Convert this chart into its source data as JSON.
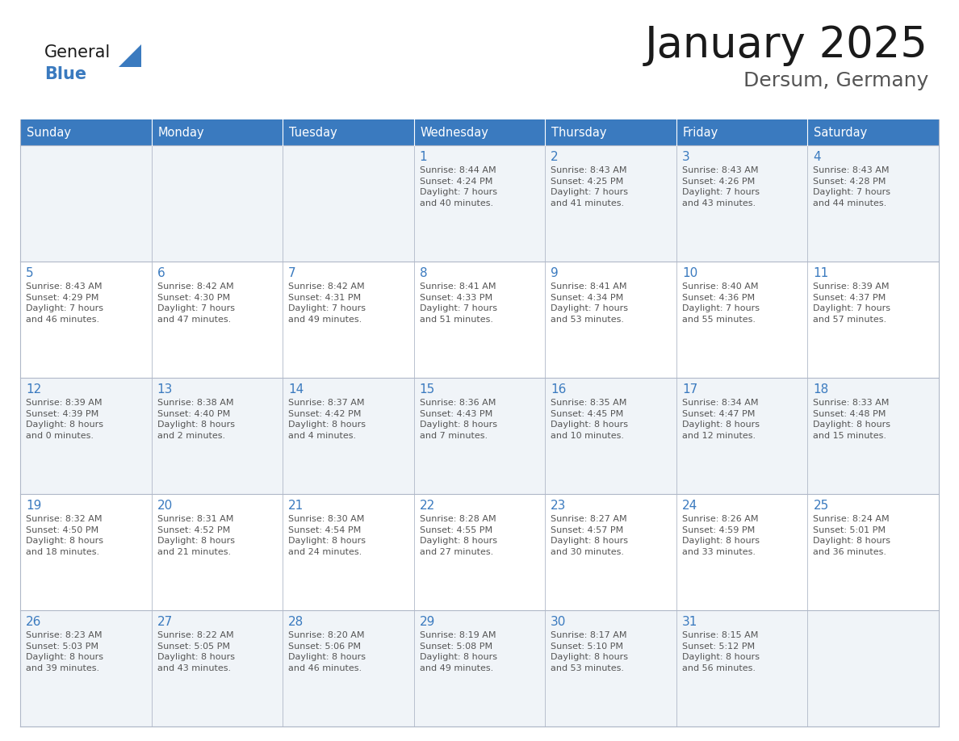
{
  "title": "January 2025",
  "subtitle": "Dersum, Germany",
  "header_bg": "#3a7abf",
  "header_text_color": "#ffffff",
  "cell_bg_odd": "#f0f4f8",
  "cell_bg_even": "#ffffff",
  "day_number_color": "#3a7abf",
  "cell_text_color": "#555555",
  "grid_line_color": "#b0b8c8",
  "header_line_color": "#3a7abf",
  "logo_general_color": "#1a1a1a",
  "logo_blue_color": "#3a7abf",
  "logo_triangle_color": "#3a7abf",
  "title_color": "#1a1a1a",
  "subtitle_color": "#555555",
  "days_of_week": [
    "Sunday",
    "Monday",
    "Tuesday",
    "Wednesday",
    "Thursday",
    "Friday",
    "Saturday"
  ],
  "calendar": [
    [
      {
        "day": null,
        "info": null
      },
      {
        "day": null,
        "info": null
      },
      {
        "day": null,
        "info": null
      },
      {
        "day": 1,
        "info": "Sunrise: 8:44 AM\nSunset: 4:24 PM\nDaylight: 7 hours\nand 40 minutes."
      },
      {
        "day": 2,
        "info": "Sunrise: 8:43 AM\nSunset: 4:25 PM\nDaylight: 7 hours\nand 41 minutes."
      },
      {
        "day": 3,
        "info": "Sunrise: 8:43 AM\nSunset: 4:26 PM\nDaylight: 7 hours\nand 43 minutes."
      },
      {
        "day": 4,
        "info": "Sunrise: 8:43 AM\nSunset: 4:28 PM\nDaylight: 7 hours\nand 44 minutes."
      }
    ],
    [
      {
        "day": 5,
        "info": "Sunrise: 8:43 AM\nSunset: 4:29 PM\nDaylight: 7 hours\nand 46 minutes."
      },
      {
        "day": 6,
        "info": "Sunrise: 8:42 AM\nSunset: 4:30 PM\nDaylight: 7 hours\nand 47 minutes."
      },
      {
        "day": 7,
        "info": "Sunrise: 8:42 AM\nSunset: 4:31 PM\nDaylight: 7 hours\nand 49 minutes."
      },
      {
        "day": 8,
        "info": "Sunrise: 8:41 AM\nSunset: 4:33 PM\nDaylight: 7 hours\nand 51 minutes."
      },
      {
        "day": 9,
        "info": "Sunrise: 8:41 AM\nSunset: 4:34 PM\nDaylight: 7 hours\nand 53 minutes."
      },
      {
        "day": 10,
        "info": "Sunrise: 8:40 AM\nSunset: 4:36 PM\nDaylight: 7 hours\nand 55 minutes."
      },
      {
        "day": 11,
        "info": "Sunrise: 8:39 AM\nSunset: 4:37 PM\nDaylight: 7 hours\nand 57 minutes."
      }
    ],
    [
      {
        "day": 12,
        "info": "Sunrise: 8:39 AM\nSunset: 4:39 PM\nDaylight: 8 hours\nand 0 minutes."
      },
      {
        "day": 13,
        "info": "Sunrise: 8:38 AM\nSunset: 4:40 PM\nDaylight: 8 hours\nand 2 minutes."
      },
      {
        "day": 14,
        "info": "Sunrise: 8:37 AM\nSunset: 4:42 PM\nDaylight: 8 hours\nand 4 minutes."
      },
      {
        "day": 15,
        "info": "Sunrise: 8:36 AM\nSunset: 4:43 PM\nDaylight: 8 hours\nand 7 minutes."
      },
      {
        "day": 16,
        "info": "Sunrise: 8:35 AM\nSunset: 4:45 PM\nDaylight: 8 hours\nand 10 minutes."
      },
      {
        "day": 17,
        "info": "Sunrise: 8:34 AM\nSunset: 4:47 PM\nDaylight: 8 hours\nand 12 minutes."
      },
      {
        "day": 18,
        "info": "Sunrise: 8:33 AM\nSunset: 4:48 PM\nDaylight: 8 hours\nand 15 minutes."
      }
    ],
    [
      {
        "day": 19,
        "info": "Sunrise: 8:32 AM\nSunset: 4:50 PM\nDaylight: 8 hours\nand 18 minutes."
      },
      {
        "day": 20,
        "info": "Sunrise: 8:31 AM\nSunset: 4:52 PM\nDaylight: 8 hours\nand 21 minutes."
      },
      {
        "day": 21,
        "info": "Sunrise: 8:30 AM\nSunset: 4:54 PM\nDaylight: 8 hours\nand 24 minutes."
      },
      {
        "day": 22,
        "info": "Sunrise: 8:28 AM\nSunset: 4:55 PM\nDaylight: 8 hours\nand 27 minutes."
      },
      {
        "day": 23,
        "info": "Sunrise: 8:27 AM\nSunset: 4:57 PM\nDaylight: 8 hours\nand 30 minutes."
      },
      {
        "day": 24,
        "info": "Sunrise: 8:26 AM\nSunset: 4:59 PM\nDaylight: 8 hours\nand 33 minutes."
      },
      {
        "day": 25,
        "info": "Sunrise: 8:24 AM\nSunset: 5:01 PM\nDaylight: 8 hours\nand 36 minutes."
      }
    ],
    [
      {
        "day": 26,
        "info": "Sunrise: 8:23 AM\nSunset: 5:03 PM\nDaylight: 8 hours\nand 39 minutes."
      },
      {
        "day": 27,
        "info": "Sunrise: 8:22 AM\nSunset: 5:05 PM\nDaylight: 8 hours\nand 43 minutes."
      },
      {
        "day": 28,
        "info": "Sunrise: 8:20 AM\nSunset: 5:06 PM\nDaylight: 8 hours\nand 46 minutes."
      },
      {
        "day": 29,
        "info": "Sunrise: 8:19 AM\nSunset: 5:08 PM\nDaylight: 8 hours\nand 49 minutes."
      },
      {
        "day": 30,
        "info": "Sunrise: 8:17 AM\nSunset: 5:10 PM\nDaylight: 8 hours\nand 53 minutes."
      },
      {
        "day": 31,
        "info": "Sunrise: 8:15 AM\nSunset: 5:12 PM\nDaylight: 8 hours\nand 56 minutes."
      },
      {
        "day": null,
        "info": null
      }
    ]
  ],
  "fig_width": 11.88,
  "fig_height": 9.18,
  "dpi": 100
}
